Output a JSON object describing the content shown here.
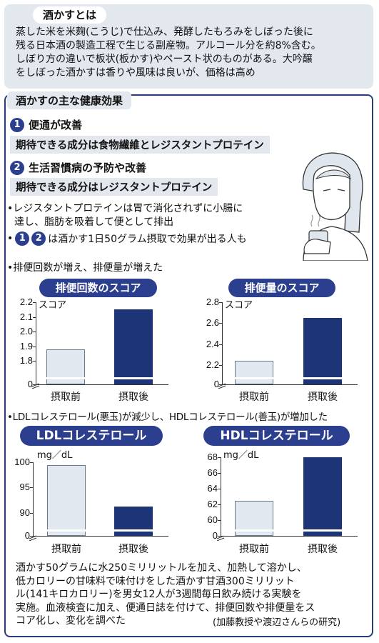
{
  "section1": {
    "title": "酒かすとは",
    "lines": [
      "蒸した米を米麹(こうじ)で仕込み、発酵したもろみをしぼった後に",
      "残る日本酒の製造工程で生じる副産物。アルコール分を約8%含む。",
      "しぼり方の違いで板状(板かす)やペースト状のものがある。大吟醸",
      "をしぼった酒かすは香りや風味は良いが、価格は高め"
    ]
  },
  "section2": {
    "title": "酒かすの主な健康効果",
    "item1": {
      "num": "1",
      "heading": "便通が改善",
      "note": "期待できる成分は食物繊維とレジスタントプロテイン"
    },
    "item2": {
      "num": "2",
      "heading": "生活習慣病の予防や改善",
      "note": "期待できる成分はレジスタントプロテイン"
    },
    "bullets": [
      "•レジスタントプロテインは胃で消化されずに小腸に",
      "達し、脂肪を吸着して便として排出"
    ],
    "bullet_nums_text": "は酒かす1日50グラム摂取で効果が出る人も",
    "bullet_nums": [
      "1",
      "2"
    ],
    "bullet_dot": "•",
    "stool_intro": "•排便回数が増え、排便量が増えた",
    "chol_intro": "•LDLコレステロール(悪玉)が減少し、HDLコレステロール(善玉)が増加した"
  },
  "chart_data": [
    {
      "type": "bar",
      "title": "排便回数のスコア",
      "ylabel": "スコア",
      "categories": [
        "摂取前",
        "摂取後"
      ],
      "values": [
        1.88,
        2.15
      ],
      "ylim": [
        1.7,
        2.2
      ],
      "yticks": [
        "2.2",
        "2.1",
        "2.0",
        "1.9",
        "1.8",
        "0"
      ],
      "axis_break": true
    },
    {
      "type": "bar",
      "title": "排便量のスコア",
      "ylabel": "スコア",
      "categories": [
        "摂取前",
        "摂取後"
      ],
      "values": [
        2.24,
        2.65
      ],
      "ylim": [
        2.1,
        2.8
      ],
      "yticks": [
        "2.8",
        "2.6",
        "2.4",
        "2.2",
        "0"
      ],
      "axis_break": true
    },
    {
      "type": "bar",
      "title": "LDLコレステロール",
      "ylabel": "mg／dL",
      "categories": [
        "摂取前",
        "摂取後"
      ],
      "values": [
        99.5,
        91.3
      ],
      "ylim": [
        87,
        100
      ],
      "yticks": [
        "100",
        "95",
        "90",
        "0"
      ],
      "axis_break": true
    },
    {
      "type": "bar",
      "title": "HDLコレステロール",
      "ylabel": "mg／dL",
      "categories": [
        "摂取前",
        "摂取後"
      ],
      "values": [
        62.5,
        68
      ],
      "ylim": [
        59,
        68
      ],
      "yticks": [
        "68",
        "66",
        "64",
        "62",
        "60",
        "0"
      ],
      "axis_break": true
    }
  ],
  "footer": {
    "lines": [
      "酒かす50グラムに水250ミリリットルを加え、加熱して溶かし、",
      "低カロリーの甘味料で味付けをした酒かす甘酒300ミリリット",
      "ル(141キロカロリー)を男女12人が3週間毎日飲み続ける実験を",
      "実施。血液検査に加え、便通日誌を付けて、排便回数や排便量をス",
      "コア化し、変化を調べた"
    ],
    "credit": "(加藤教授や渡辺さんらの研究)"
  },
  "colors": {
    "navy": "#2c3f8f",
    "bar_dark": "#1d3576",
    "bar_light": "#e1e8ef",
    "panel": "#e3e8ee"
  }
}
